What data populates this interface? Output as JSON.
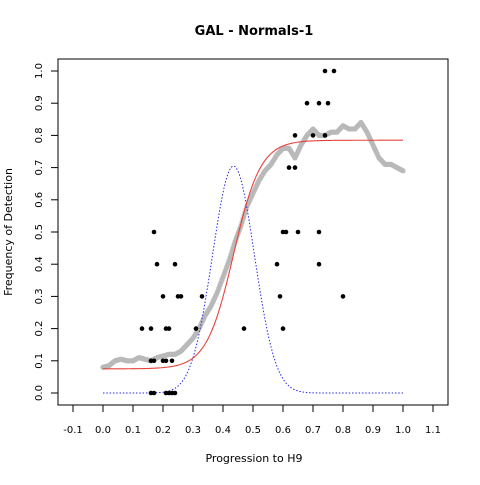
{
  "chart_data": {
    "type": "scatter",
    "title": "GAL - Normals-1",
    "xlabel": "Progression to H9",
    "ylabel": "Frequency of Detection",
    "xlim": [
      -0.1,
      1.1
    ],
    "ylim": [
      0.0,
      1.0
    ],
    "x_ticks": [
      -0.1,
      0.0,
      0.1,
      0.2,
      0.3,
      0.4,
      0.5,
      0.6,
      0.7,
      0.8,
      0.9,
      1.0,
      1.1
    ],
    "x_tick_labels": [
      "-0.1",
      "0.0",
      "0.1",
      "0.2",
      "0.3",
      "0.4",
      "0.5",
      "0.6",
      "0.7",
      "0.8",
      "0.9",
      "1.0",
      "1.1"
    ],
    "y_ticks": [
      0.0,
      0.1,
      0.2,
      0.3,
      0.4,
      0.5,
      0.6,
      0.7,
      0.8,
      0.9,
      1.0
    ],
    "y_tick_labels": [
      "0.0",
      "0.1",
      "0.2",
      "0.3",
      "0.4",
      "0.5",
      "0.6",
      "0.7",
      "0.8",
      "0.9",
      "1.0"
    ],
    "grid": false,
    "legend": "none",
    "series": [
      {
        "kind": "points",
        "color": "#000000",
        "points": [
          [
            0.16,
            0.0
          ],
          [
            0.17,
            0.0
          ],
          [
            0.21,
            0.0
          ],
          [
            0.22,
            0.0
          ],
          [
            0.23,
            0.0
          ],
          [
            0.24,
            0.0
          ],
          [
            0.16,
            0.1
          ],
          [
            0.17,
            0.1
          ],
          [
            0.2,
            0.1
          ],
          [
            0.21,
            0.1
          ],
          [
            0.23,
            0.1
          ],
          [
            0.13,
            0.2
          ],
          [
            0.16,
            0.2
          ],
          [
            0.21,
            0.2
          ],
          [
            0.22,
            0.2
          ],
          [
            0.31,
            0.2
          ],
          [
            0.47,
            0.2
          ],
          [
            0.6,
            0.2
          ],
          [
            0.2,
            0.3
          ],
          [
            0.25,
            0.3
          ],
          [
            0.26,
            0.3
          ],
          [
            0.33,
            0.3
          ],
          [
            0.59,
            0.3
          ],
          [
            0.8,
            0.3
          ],
          [
            0.18,
            0.4
          ],
          [
            0.24,
            0.4
          ],
          [
            0.58,
            0.4
          ],
          [
            0.72,
            0.4
          ],
          [
            0.17,
            0.5
          ],
          [
            0.6,
            0.5
          ],
          [
            0.61,
            0.5
          ],
          [
            0.65,
            0.5
          ],
          [
            0.72,
            0.5
          ],
          [
            0.62,
            0.7
          ],
          [
            0.64,
            0.7
          ],
          [
            0.64,
            0.8
          ],
          [
            0.7,
            0.8
          ],
          [
            0.74,
            0.8
          ],
          [
            0.68,
            0.9
          ],
          [
            0.72,
            0.9
          ],
          [
            0.75,
            0.9
          ],
          [
            0.74,
            1.0
          ],
          [
            0.77,
            1.0
          ]
        ]
      },
      {
        "kind": "smoothed_frequency",
        "color": "#b9b9b9",
        "points": [
          [
            0.0,
            0.08
          ],
          [
            0.02,
            0.085
          ],
          [
            0.04,
            0.1
          ],
          [
            0.06,
            0.105
          ],
          [
            0.08,
            0.1
          ],
          [
            0.1,
            0.1
          ],
          [
            0.12,
            0.11
          ],
          [
            0.14,
            0.105
          ],
          [
            0.16,
            0.1
          ],
          [
            0.18,
            0.11
          ],
          [
            0.2,
            0.115
          ],
          [
            0.22,
            0.12
          ],
          [
            0.24,
            0.12
          ],
          [
            0.26,
            0.13
          ],
          [
            0.28,
            0.15
          ],
          [
            0.3,
            0.17
          ],
          [
            0.32,
            0.2
          ],
          [
            0.34,
            0.24
          ],
          [
            0.36,
            0.27
          ],
          [
            0.38,
            0.31
          ],
          [
            0.4,
            0.36
          ],
          [
            0.42,
            0.41
          ],
          [
            0.44,
            0.47
          ],
          [
            0.46,
            0.52
          ],
          [
            0.48,
            0.58
          ],
          [
            0.5,
            0.62
          ],
          [
            0.52,
            0.66
          ],
          [
            0.54,
            0.69
          ],
          [
            0.56,
            0.71
          ],
          [
            0.58,
            0.74
          ],
          [
            0.6,
            0.76
          ],
          [
            0.62,
            0.76
          ],
          [
            0.64,
            0.73
          ],
          [
            0.66,
            0.77
          ],
          [
            0.68,
            0.8
          ],
          [
            0.7,
            0.82
          ],
          [
            0.72,
            0.8
          ],
          [
            0.74,
            0.8
          ],
          [
            0.76,
            0.81
          ],
          [
            0.78,
            0.81
          ],
          [
            0.8,
            0.83
          ],
          [
            0.82,
            0.82
          ],
          [
            0.84,
            0.82
          ],
          [
            0.86,
            0.84
          ],
          [
            0.88,
            0.81
          ],
          [
            0.9,
            0.77
          ],
          [
            0.92,
            0.73
          ],
          [
            0.94,
            0.71
          ],
          [
            0.96,
            0.71
          ],
          [
            0.98,
            0.7
          ],
          [
            1.0,
            0.69
          ]
        ]
      },
      {
        "kind": "fitted_sigmoid",
        "color": "#e8423b",
        "lower": 0.075,
        "upper": 0.785,
        "midpoint": 0.435,
        "scale": 0.045,
        "x_range": [
          0.0,
          1.0
        ]
      },
      {
        "kind": "normal_density",
        "color": "#2a2ae0",
        "mean": 0.435,
        "sd": 0.07,
        "peak": 0.705,
        "x_range": [
          0.0,
          1.0
        ]
      }
    ]
  }
}
